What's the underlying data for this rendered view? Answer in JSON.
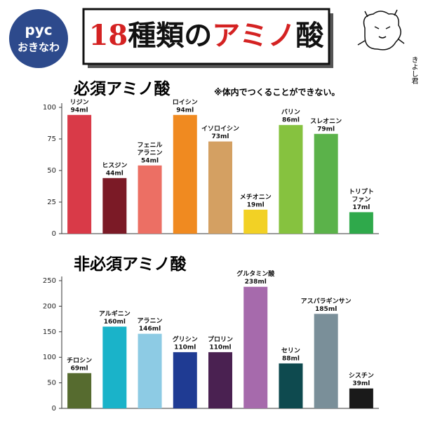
{
  "header": {
    "badge": [
      "pyc",
      "おきなわ"
    ],
    "title_parts": [
      {
        "text": "18",
        "color": "#d42222"
      },
      {
        "text": "種類の",
        "color": "#111111"
      },
      {
        "text": "アミノ",
        "color": "#d42222"
      },
      {
        "text": "酸",
        "color": "#111111"
      }
    ],
    "character_name": "きよし君"
  },
  "chart_data": [
    {
      "type": "bar",
      "title": "必須アミノ酸",
      "note": "※体内でつくることができない。",
      "categories": [
        [
          "リジン"
        ],
        [
          "ヒスジン"
        ],
        [
          "フェニル",
          "アラニン"
        ],
        [
          "ロイシン"
        ],
        [
          "イソロイシン"
        ],
        [
          "メチオニン"
        ],
        [
          "バリン"
        ],
        [
          "スレオニン"
        ],
        [
          "トリプト",
          "ファン"
        ]
      ],
      "values": [
        94,
        44,
        54,
        94,
        73,
        19,
        86,
        79,
        17
      ],
      "value_labels": [
        "94ml",
        "44ml",
        "54ml",
        "94ml",
        "73ml",
        "19ml",
        "86ml",
        "79ml",
        "17ml"
      ],
      "colors": [
        "#d93a48",
        "#7b1a26",
        "#ec6f64",
        "#f08a20",
        "#d4a062",
        "#f2d125",
        "#86c23f",
        "#5bb24a",
        "#2fa94b"
      ],
      "ylim": [
        0,
        100
      ],
      "yticks": [
        0,
        25,
        50,
        75,
        100
      ]
    },
    {
      "type": "bar",
      "title": "非必須アミノ酸",
      "categories": [
        [
          "チロシン"
        ],
        [
          "アルギニン"
        ],
        [
          "アラニン"
        ],
        [
          "グリシン"
        ],
        [
          "プロリン"
        ],
        [
          "グルタミン酸"
        ],
        [
          "セリン"
        ],
        [
          "アスパラギンサン"
        ],
        [
          "シスチン"
        ]
      ],
      "values": [
        69,
        160,
        146,
        110,
        110,
        238,
        88,
        185,
        39
      ],
      "value_labels": [
        "69ml",
        "160ml",
        "146ml",
        "110ml",
        "110ml",
        "238ml",
        "88ml",
        "185ml",
        "39ml"
      ],
      "colors": [
        "#566b2f",
        "#1ab3c9",
        "#8dcbe4",
        "#1f3b93",
        "#4a2151",
        "#a66aac",
        "#0e4a4f",
        "#7a8f99",
        "#1a1a1a"
      ],
      "ylim": [
        0,
        250
      ],
      "yticks": [
        0,
        50,
        100,
        150,
        200,
        250
      ]
    }
  ]
}
